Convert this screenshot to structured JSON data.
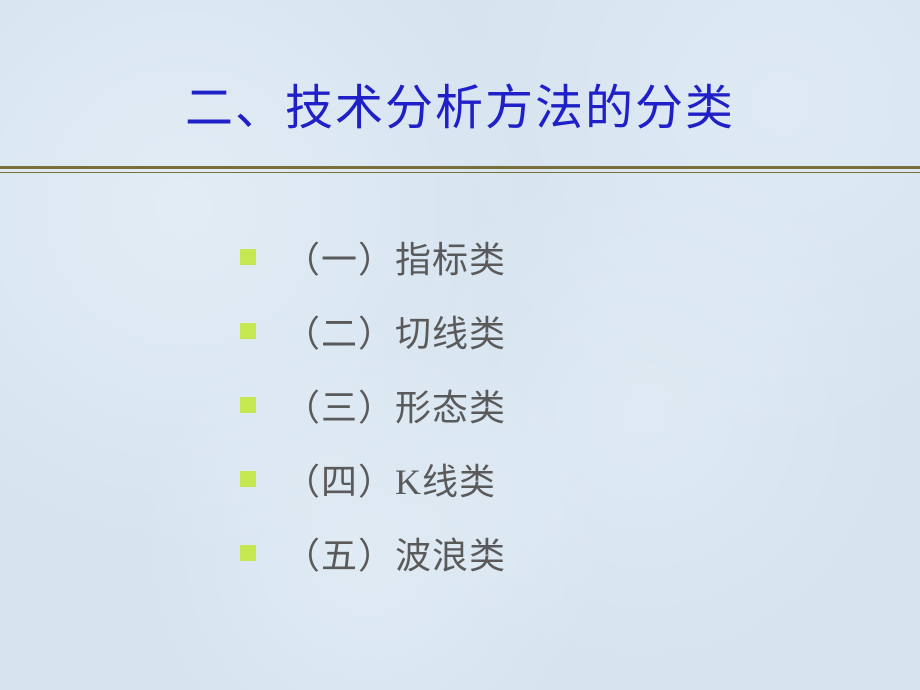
{
  "slide": {
    "title": "二、技术分析方法的分类",
    "title_color": "#2020c8",
    "title_fontsize": 48,
    "background_color": "#d6e4f0",
    "divider_color": "#787038",
    "bullet_color": "#c5e850",
    "bullet_size": 16,
    "text_color": "#5a5a5a",
    "text_fontsize": 36,
    "items": [
      "（一）指标类",
      "（二）切线类",
      "（三）形态类",
      "（四）K线类",
      "（五）波浪类"
    ]
  }
}
